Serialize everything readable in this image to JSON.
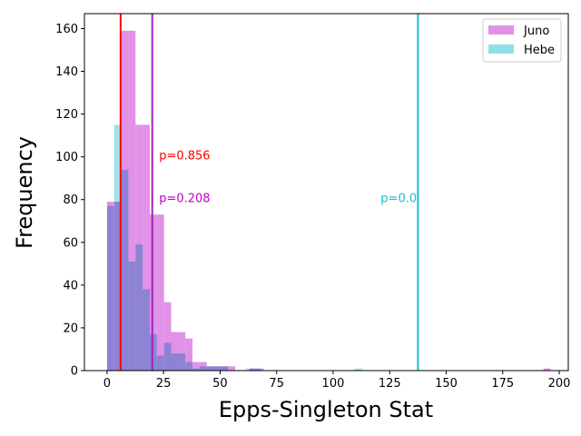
{
  "chart_data": {
    "type": "histogram",
    "xlabel": "Epps-Singleton Stat",
    "ylabel": "Frequency",
    "xlim": [
      -10,
      204
    ],
    "ylim": [
      0,
      167
    ],
    "xticks": [
      0,
      25,
      50,
      75,
      100,
      125,
      150,
      175,
      200
    ],
    "yticks": [
      0,
      20,
      40,
      60,
      80,
      100,
      120,
      140,
      160
    ],
    "bin_width": 3.15,
    "legend_position": "top-right",
    "series": [
      {
        "name": "Juno",
        "color": "#e191e6",
        "bins": [
          {
            "x0": 0.0,
            "count": 79
          },
          {
            "x0": 3.15,
            "count": 79
          },
          {
            "x0": 6.3,
            "count": 159
          },
          {
            "x0": 9.45,
            "count": 159
          },
          {
            "x0": 12.6,
            "count": 115
          },
          {
            "x0": 15.75,
            "count": 115
          },
          {
            "x0": 18.9,
            "count": 73
          },
          {
            "x0": 22.05,
            "count": 73
          },
          {
            "x0": 25.2,
            "count": 32
          },
          {
            "x0": 28.35,
            "count": 18
          },
          {
            "x0": 31.5,
            "count": 18
          },
          {
            "x0": 34.65,
            "count": 15
          },
          {
            "x0": 37.8,
            "count": 4
          },
          {
            "x0": 40.95,
            "count": 4
          },
          {
            "x0": 44.1,
            "count": 2
          },
          {
            "x0": 47.25,
            "count": 2
          },
          {
            "x0": 50.4,
            "count": 2
          },
          {
            "x0": 53.55,
            "count": 2
          },
          {
            "x0": 63.0,
            "count": 1
          },
          {
            "x0": 66.15,
            "count": 1
          },
          {
            "x0": 193.0,
            "count": 1
          }
        ]
      },
      {
        "name": "Hebe",
        "color": "#8fe0e6",
        "bins": [
          {
            "x0": 0.0,
            "count": 77
          },
          {
            "x0": 3.15,
            "count": 115
          },
          {
            "x0": 6.3,
            "count": 94
          },
          {
            "x0": 9.45,
            "count": 51
          },
          {
            "x0": 12.6,
            "count": 59
          },
          {
            "x0": 15.75,
            "count": 38
          },
          {
            "x0": 18.9,
            "count": 17
          },
          {
            "x0": 22.05,
            "count": 7
          },
          {
            "x0": 25.2,
            "count": 13
          },
          {
            "x0": 28.35,
            "count": 8
          },
          {
            "x0": 31.5,
            "count": 8
          },
          {
            "x0": 34.65,
            "count": 4
          },
          {
            "x0": 37.8,
            "count": 1
          },
          {
            "x0": 40.95,
            "count": 2
          },
          {
            "x0": 44.1,
            "count": 2
          },
          {
            "x0": 47.25,
            "count": 2
          },
          {
            "x0": 50.4,
            "count": 2
          },
          {
            "x0": 61.5,
            "count": 1
          },
          {
            "x0": 64.65,
            "count": 1
          },
          {
            "x0": 109.5,
            "count": 1
          }
        ]
      }
    ],
    "vlines": [
      {
        "name": "juno-pvalue-line",
        "x": 6.0,
        "color": "#ff0000"
      },
      {
        "name": "hebe-pvalue-line",
        "x": 20.0,
        "color": "#a020c0"
      },
      {
        "name": "cross-pvalue-line",
        "x": 137.5,
        "color": "#17becf"
      }
    ],
    "annotations": [
      {
        "name": "annotation-juno",
        "text": "p=0.856",
        "x": 23,
        "y": 101,
        "color": "#ff0000",
        "anchor": "start"
      },
      {
        "name": "annotation-hebe",
        "text": "p=0.208",
        "x": 23,
        "y": 81,
        "color": "#c000c0",
        "anchor": "start"
      },
      {
        "name": "annotation-cross",
        "text": "p=0.0",
        "x": 137,
        "y": 81,
        "color": "#17becf",
        "anchor": "end"
      }
    ]
  }
}
